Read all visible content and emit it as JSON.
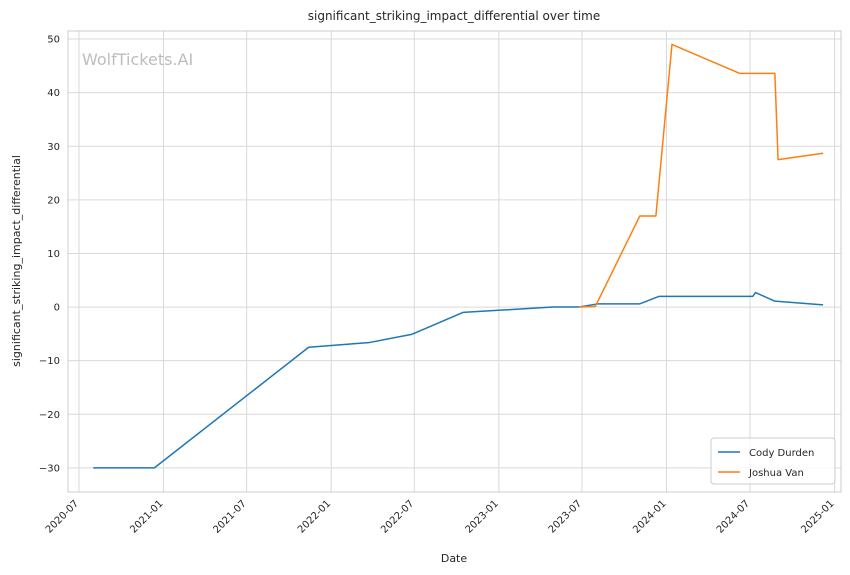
{
  "watermark": "WolfTickets.AI",
  "chart_data": {
    "type": "line",
    "title": "significant_striking_impact_differential over time",
    "xlabel": "Date",
    "ylabel": "significant_striking_impact_differential",
    "x_axis_type": "date",
    "xlim": [
      "2020-06-07",
      "2025-01-15"
    ],
    "ylim": [
      -34.5,
      51.5
    ],
    "x_ticks": [
      "2020-07",
      "2021-01",
      "2021-07",
      "2022-01",
      "2022-07",
      "2023-01",
      "2023-07",
      "2024-01",
      "2024-07",
      "2025-01"
    ],
    "y_ticks": [
      -30,
      -20,
      -10,
      0,
      10,
      20,
      30,
      40,
      50
    ],
    "y_tick_labels": [
      "−30",
      "−20",
      "−10",
      "0",
      "10",
      "20",
      "30",
      "40",
      "50"
    ],
    "grid": true,
    "legend_position": "bottom-right",
    "series": [
      {
        "name": "Cody Durden",
        "color": "#1f77b4",
        "points": [
          [
            "2020-08-01",
            -30.0
          ],
          [
            "2020-12-12",
            -30.0
          ],
          [
            "2021-11-13",
            -7.5
          ],
          [
            "2022-03-26",
            -6.6
          ],
          [
            "2022-06-25",
            -5.1
          ],
          [
            "2022-10-15",
            -1.0
          ],
          [
            "2023-04-29",
            0.0
          ],
          [
            "2023-06-24",
            0.0
          ],
          [
            "2023-08-05",
            0.6
          ],
          [
            "2023-11-04",
            0.6
          ],
          [
            "2023-12-16",
            2.0
          ],
          [
            "2024-07-07",
            2.0
          ],
          [
            "2024-07-13",
            2.7
          ],
          [
            "2024-08-24",
            1.1
          ],
          [
            "2024-12-07",
            0.4
          ]
        ]
      },
      {
        "name": "Joshua Van",
        "color": "#ff7f0e",
        "points": [
          [
            "2023-06-24",
            0.0
          ],
          [
            "2023-07-30",
            0.1
          ],
          [
            "2023-11-04",
            17.0
          ],
          [
            "2023-12-09",
            17.0
          ],
          [
            "2024-01-13",
            49.0
          ],
          [
            "2024-06-08",
            43.6
          ],
          [
            "2024-08-24",
            43.6
          ],
          [
            "2024-08-31",
            27.5
          ],
          [
            "2024-12-07",
            28.7
          ]
        ]
      }
    ]
  }
}
